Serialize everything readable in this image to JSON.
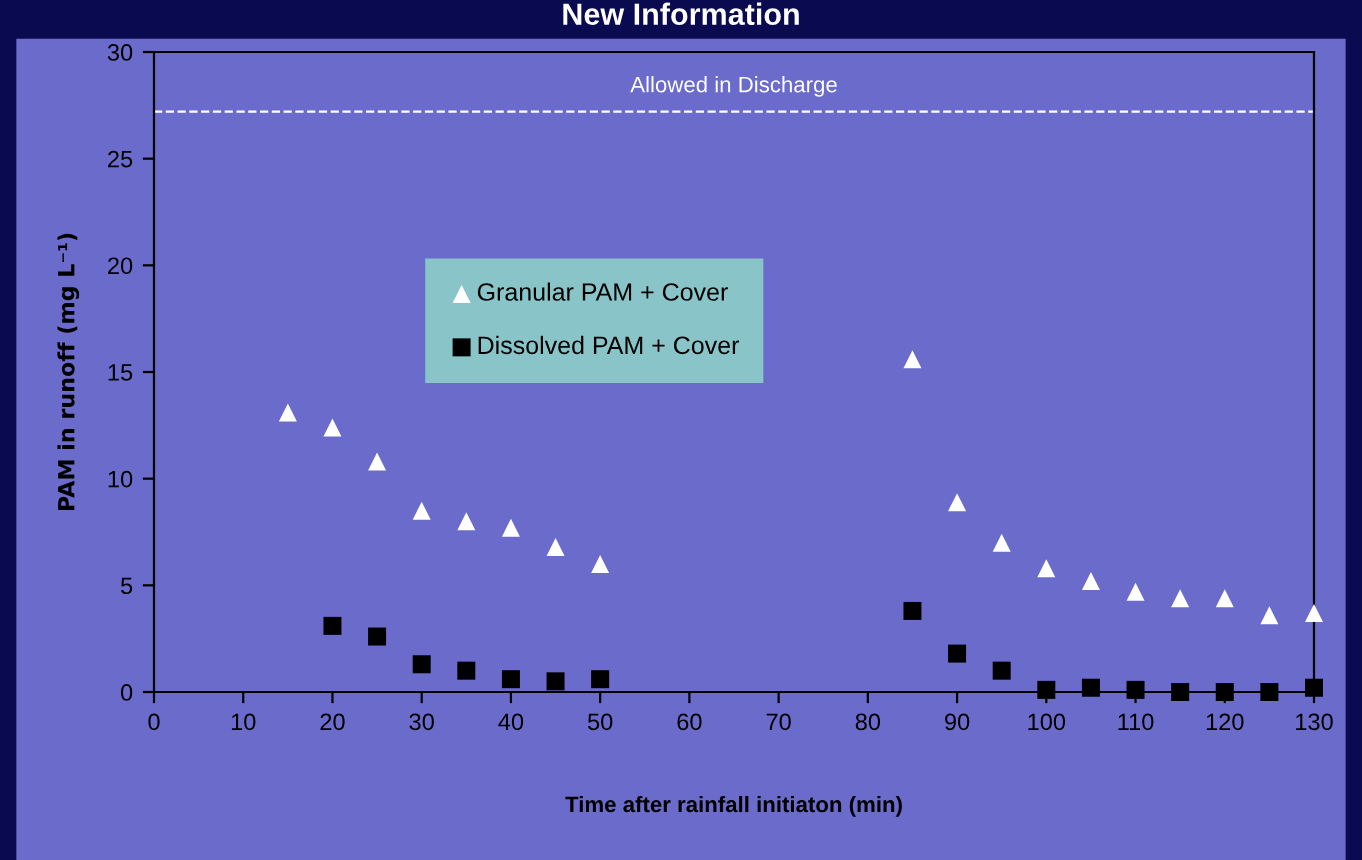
{
  "chart_data": {
    "type": "scatter",
    "title": "New Information",
    "xlabel": "Time after rainfall initiaton (min)",
    "ylabel": "PAM in runoff (mg L⁻¹)",
    "xlim": [
      0,
      130
    ],
    "xticks": [
      0,
      10,
      20,
      30,
      40,
      50,
      60,
      70,
      80,
      90,
      100,
      110,
      120,
      130
    ],
    "ylim": [
      0,
      30
    ],
    "yticks": [
      0,
      5,
      10,
      15,
      20,
      25,
      30
    ],
    "grid": false,
    "legend": "left",
    "ref_lines": [
      {
        "axis": "y",
        "value": 27.2,
        "label": "Allowed in Discharge",
        "color": "#ffffff",
        "line_style": "dashed"
      }
    ],
    "series": [
      {
        "name": "Granular PAM + Cover",
        "color": "#ffffff",
        "marker": "triangle",
        "x": [
          15,
          20,
          25,
          30,
          35,
          40,
          45,
          50,
          85,
          90,
          95,
          100,
          105,
          110,
          115,
          120,
          125,
          130
        ],
        "values": [
          13.1,
          12.4,
          10.8,
          8.5,
          8.0,
          7.7,
          6.8,
          6.0,
          15.6,
          8.9,
          7.0,
          5.8,
          5.2,
          4.7,
          4.4,
          4.4,
          3.6,
          3.7
        ]
      },
      {
        "name": "Dissolved PAM + Cover",
        "color": "#000000",
        "marker": "square",
        "x": [
          20,
          25,
          30,
          35,
          40,
          45,
          50,
          85,
          90,
          95,
          100,
          105,
          110,
          115,
          120,
          125,
          130
        ],
        "values": [
          3.1,
          2.6,
          1.3,
          1.0,
          0.6,
          0.5,
          0.6,
          3.8,
          1.8,
          1.0,
          0.1,
          0.2,
          0.1,
          0.0,
          0.0,
          0.0,
          0.2
        ]
      }
    ]
  }
}
